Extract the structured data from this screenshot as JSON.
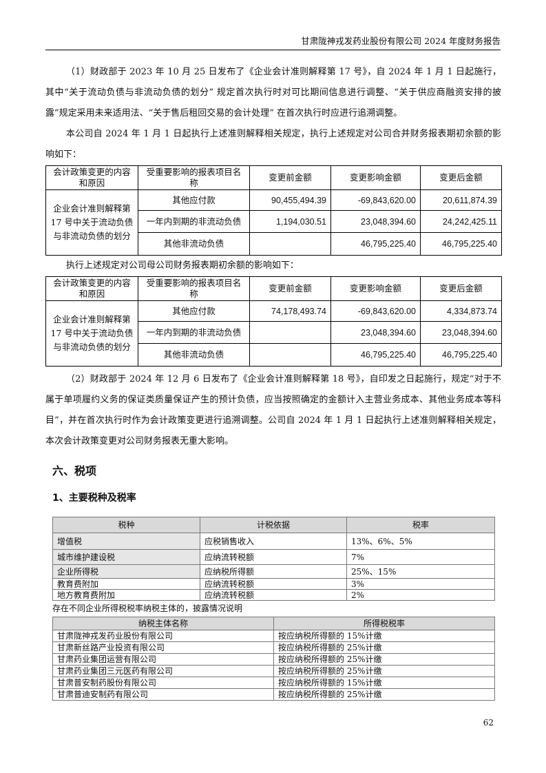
{
  "header": {
    "title": "甘肃陇神戎发药业股份有限公司 2024 年度财务报告"
  },
  "para1": "（1）财政部于 2023 年 10 月 25 日发布了《企业会计准则解释第 17 号》，自 2024 年 1 月 1 日起施行，其中“关于流动负债与非流动负债的划分” 规定首次执行时对可比期间信息进行调整、“关于供应商融资安排的披露”规定采用未来适用法、“关于售后租回交易的会计处理” 在首次执行时应进行追溯调整。",
  "para2": "本公司自 2024 年 1 月 1 日起执行上述准则解释相关规定，执行上述规定对公司合并财务报表期初余额的影响如下：",
  "table_consolidated": {
    "headers": [
      "会计政策变更的内容和原因",
      "受重要影响的报表项目名称",
      "变更前金额",
      "变更影响金额",
      "变更后金额"
    ],
    "reason": "企业会计准则解释第 17 号中关于流动负债与非流动负债的划分",
    "rows": [
      [
        "其他应付款",
        "90,455,494.39",
        "-69,843,620.00",
        "20,611,874.39"
      ],
      [
        "一年内到期的非流动负债",
        "1,194,030.51",
        "23,048,394.60",
        "24,242,425.11"
      ],
      [
        "其他非流动负债",
        "",
        "46,795,225.40",
        "46,795,225.40"
      ]
    ]
  },
  "para3": "执行上述规定对公司母公司财务报表期初余额的影响如下：",
  "table_parent": {
    "headers": [
      "会计政策变更的内容和原因",
      "受重要影响的报表项目名称",
      "变更前金额",
      "变更影响金额",
      "变更后金额"
    ],
    "reason": "企业会计准则解释第 17 号中关于流动负债与非流动负债的划分",
    "rows": [
      [
        "其他应付款",
        "74,178,493.74",
        "-69,843,620.00",
        "4,334,873.74"
      ],
      [
        "一年内到期的非流动负债",
        "",
        "23,048,394.60",
        "23,048,394.60"
      ],
      [
        "其他非流动负债",
        "",
        "46,795,225.40",
        "46,795,225.40"
      ]
    ]
  },
  "para4": "（2）财政部于 2024 年 12 月 6 日发布了《企业会计准则解释第 18 号》，自印发之日起施行，规定“对于不属于单项履约义务的保证类质量保证产生的预计负债，应当按照确定的金额计入主营业务成本、其他业务成本等科目”，并在首次执行时作为会计政策变更进行追溯调整。公司自 2024 年 1 月 1 日起执行上述准则解释相关规定，本次会计政策变更对公司财务报表无重大影响。",
  "section6": "六、税项",
  "section6_1": "1、主要税种及税率",
  "tax_table": {
    "headers": [
      "税种",
      "计税依据",
      "税率"
    ],
    "rows": [
      [
        "增值税",
        "应税销售收入",
        "13%、6%、5%"
      ],
      [
        "城市维护建设税",
        "应纳流转税额",
        "7%"
      ],
      [
        "企业所得税",
        "应纳税所得额",
        "25%、15%"
      ],
      [
        "教育费附加",
        "应纳流转税额",
        "3%"
      ],
      [
        "地方教育费附加",
        "应纳流转税额",
        "2%"
      ]
    ]
  },
  "note": "存在不同企业所得税税率纳税主体的，披露情况说明",
  "entity_table": {
    "headers": [
      "纳税主体名称",
      "所得税税率"
    ],
    "rows": [
      [
        "甘肃陇神戎发药业股份有限公司",
        "按应纳税所得额的 15%计缴"
      ],
      [
        "甘肃新丝路产业投资有限公司",
        "按应纳税所得额的 25%计缴"
      ],
      [
        "甘肃药业集团运营有限公司",
        "按应纳税所得额的 25%计缴"
      ],
      [
        "甘肃药业集团三元医药有限公司",
        "按应纳税所得额的 25%计缴"
      ],
      [
        "甘肃普安制药股份有限公司",
        "按应纳税所得额的 15%计缴"
      ],
      [
        "甘肃普迪安制药有限公司",
        "按应纳税所得额的 25%计缴"
      ]
    ]
  },
  "page_number": "62"
}
